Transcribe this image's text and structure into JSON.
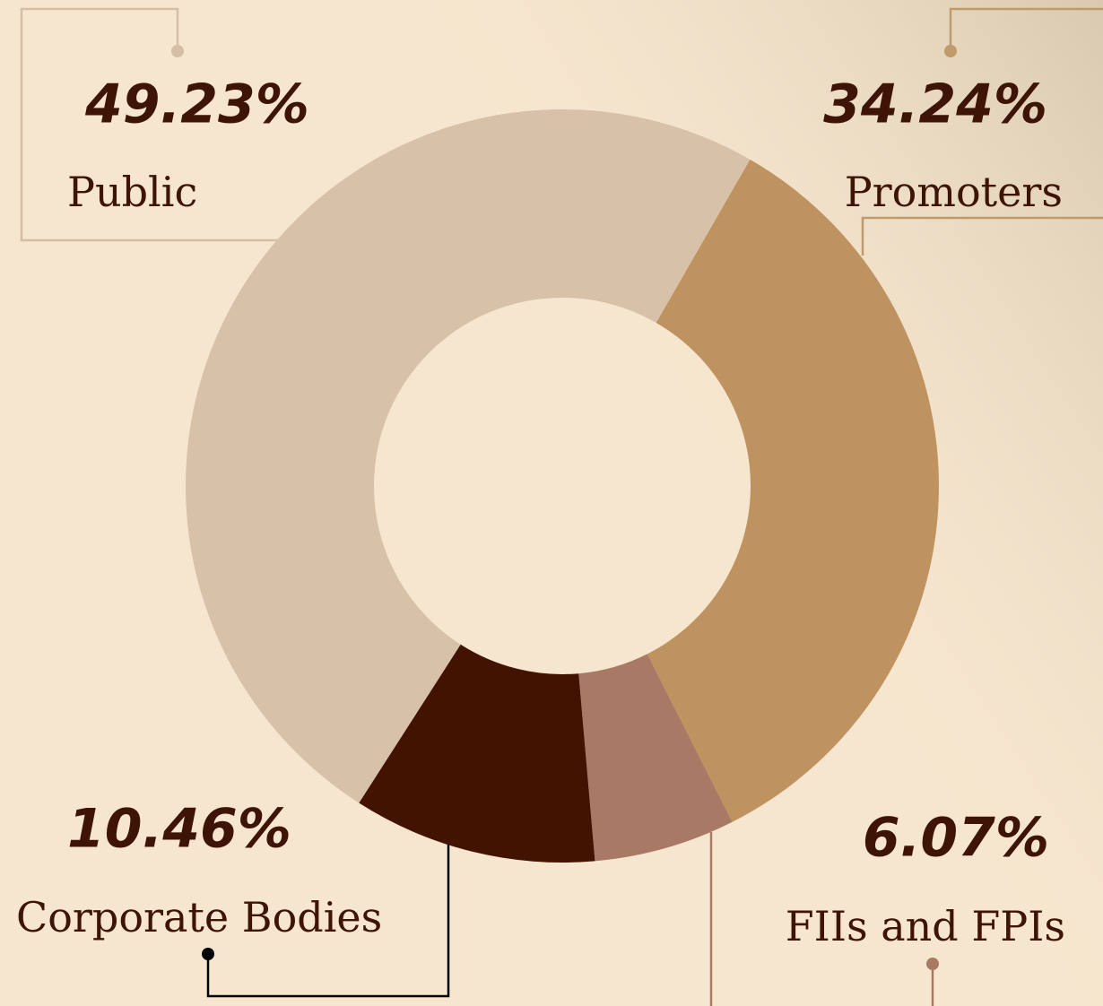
{
  "chart_data": {
    "type": "donut",
    "categories": [
      "Promoters",
      "FIIs and FPIs",
      "Corporate Bodies",
      "Public"
    ],
    "values": [
      34.24,
      6.07,
      10.46,
      49.23
    ],
    "value_labels": [
      "34.24%",
      "6.07%",
      "10.46%",
      "49.23%"
    ],
    "colors": [
      "#bf9360",
      "#a87a66",
      "#411300",
      "#d7c2a9"
    ]
  }
}
